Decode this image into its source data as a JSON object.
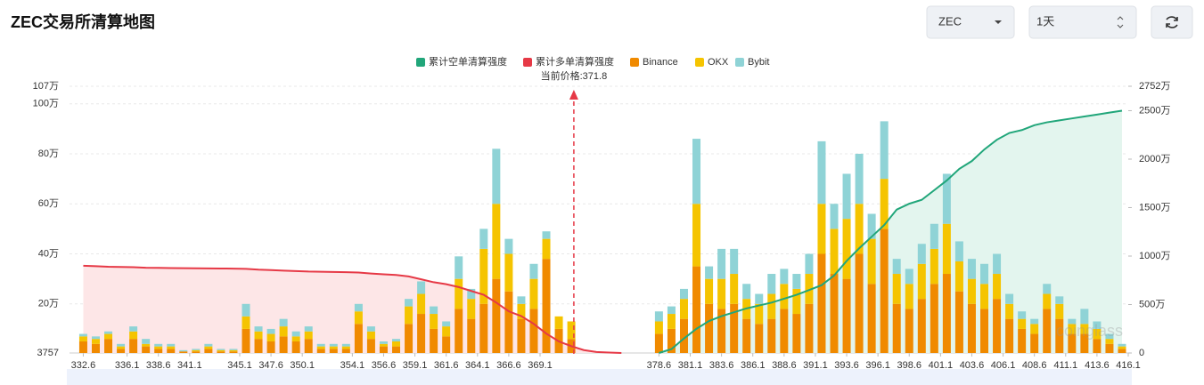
{
  "header": {
    "currency": "ZEC",
    "period": "1天"
  },
  "chart_data": {
    "type": "bar",
    "title": "ZEC交易所清算地图",
    "x": [
      332.6,
      333.6,
      334.6,
      335.6,
      336.6,
      337.6,
      338.6,
      339.6,
      340.6,
      341.6,
      342.6,
      343.6,
      344.6,
      345.6,
      346.6,
      347.6,
      348.6,
      349.6,
      350.6,
      351.6,
      352.6,
      353.6,
      354.6,
      355.6,
      356.6,
      357.6,
      358.6,
      359.6,
      360.6,
      361.6,
      362.6,
      363.6,
      364.6,
      365.6,
      366.6,
      367.6,
      368.6,
      369.6,
      370.6,
      371.6,
      372.6,
      373.6,
      374.6,
      375.6,
      376.6,
      377.6,
      378.6,
      379.6,
      380.6,
      381.6,
      382.6,
      383.6,
      384.6,
      385.6,
      386.6,
      387.6,
      388.6,
      389.6,
      390.6,
      391.6,
      392.6,
      393.6,
      394.6,
      395.6,
      396.6,
      397.6,
      398.6,
      399.6,
      400.6,
      401.6,
      402.6,
      403.6,
      404.6,
      405.6,
      406.6,
      407.6,
      408.6,
      409.6,
      410.6,
      411.6,
      412.6,
      413.6,
      414.6,
      415.6
    ],
    "series": [
      {
        "name": "累计空单清算强度",
        "type": "line",
        "axis": "y2",
        "color": "#21a67a",
        "fill": "#e3f5ee",
        "values": [
          null,
          null,
          null,
          null,
          null,
          null,
          null,
          null,
          null,
          null,
          null,
          null,
          null,
          null,
          null,
          null,
          null,
          null,
          null,
          null,
          null,
          null,
          null,
          null,
          null,
          null,
          null,
          null,
          null,
          null,
          null,
          null,
          null,
          null,
          null,
          null,
          null,
          null,
          null,
          null,
          null,
          null,
          null,
          null,
          null,
          null,
          0,
          40,
          150,
          250,
          330,
          380,
          420,
          460,
          490,
          520,
          560,
          600,
          650,
          700,
          800,
          950,
          1080,
          1200,
          1320,
          1480,
          1540,
          1580,
          1680,
          1780,
          1900,
          1980,
          2100,
          2200,
          2270,
          2300,
          2350,
          2380,
          2400,
          2420,
          2440,
          2460,
          2480,
          2500
        ]
      },
      {
        "name": "累计多单清算强度",
        "type": "line",
        "axis": "y2",
        "color": "#e63946",
        "fill": "#fde6e7",
        "values": [
          900,
          895,
          890,
          888,
          885,
          880,
          878,
          876,
          875,
          874,
          873,
          872,
          870,
          868,
          860,
          855,
          850,
          845,
          840,
          838,
          836,
          834,
          830,
          820,
          812,
          805,
          790,
          760,
          730,
          710,
          680,
          640,
          600,
          520,
          430,
          380,
          300,
          200,
          120,
          70,
          30,
          10,
          5,
          0,
          null,
          null,
          null,
          null,
          null,
          null,
          null,
          null,
          null,
          null,
          null,
          null,
          null,
          null,
          null,
          null,
          null,
          null,
          null,
          null,
          null,
          null,
          null,
          null,
          null,
          null,
          null,
          null,
          null,
          null,
          null,
          null,
          null,
          null,
          null,
          null,
          null,
          null,
          null,
          null
        ]
      },
      {
        "name": "Binance",
        "type": "bar",
        "color": "#f08a00",
        "values": [
          5,
          4,
          6,
          2,
          6,
          3,
          2,
          2,
          1,
          1,
          2,
          1,
          1,
          10,
          6,
          5,
          7,
          5,
          6,
          2,
          2,
          2,
          12,
          6,
          3,
          3,
          12,
          16,
          10,
          7,
          18,
          14,
          20,
          30,
          25,
          14,
          18,
          38,
          10,
          6,
          0,
          0,
          0,
          0,
          0,
          0,
          8,
          10,
          14,
          35,
          20,
          18,
          20,
          14,
          12,
          14,
          18,
          16,
          20,
          40,
          32,
          30,
          40,
          28,
          50,
          20,
          18,
          22,
          28,
          32,
          25,
          20,
          18,
          22,
          14,
          10,
          8,
          18,
          14,
          8,
          8,
          6,
          4,
          2
        ]
      },
      {
        "name": "OKX",
        "type": "bar",
        "color": "#f5c400",
        "values": [
          2,
          2,
          2,
          1,
          3,
          1,
          1,
          1,
          0,
          0.5,
          1,
          0.5,
          0.5,
          5,
          3,
          3,
          4,
          2,
          3,
          1,
          1,
          1,
          5,
          3,
          1,
          2,
          7,
          8,
          6,
          4,
          12,
          8,
          22,
          30,
          15,
          6,
          12,
          8,
          5,
          7,
          0,
          0,
          0,
          0,
          0,
          0,
          5,
          6,
          8,
          25,
          10,
          12,
          12,
          8,
          8,
          10,
          10,
          10,
          12,
          20,
          18,
          24,
          20,
          18,
          20,
          12,
          10,
          14,
          14,
          20,
          12,
          10,
          10,
          10,
          6,
          4,
          4,
          6,
          6,
          4,
          4,
          4,
          2,
          1
        ]
      },
      {
        "name": "Bybit",
        "type": "bar",
        "color": "#8fd3d6",
        "values": [
          1,
          1,
          1,
          1,
          2,
          2,
          1,
          1,
          0.5,
          0.5,
          1,
          0.5,
          0.5,
          5,
          2,
          2,
          3,
          2,
          2,
          1,
          1,
          1,
          3,
          2,
          1,
          1,
          3,
          5,
          3,
          2,
          9,
          4,
          8,
          22,
          6,
          3,
          6,
          3,
          0,
          0,
          0,
          0,
          0,
          0,
          0,
          0,
          4,
          3,
          4,
          26,
          5,
          12,
          10,
          6,
          4,
          8,
          6,
          6,
          8,
          25,
          10,
          18,
          20,
          10,
          23,
          6,
          6,
          8,
          10,
          20,
          8,
          8,
          8,
          8,
          4,
          3,
          2,
          4,
          3,
          2,
          6,
          3,
          2,
          1
        ]
      }
    ],
    "xlim": [
      331.5,
      416.1
    ],
    "xticks": [
      332.6,
      336.1,
      338.6,
      341.1,
      345.1,
      347.6,
      350.1,
      354.1,
      356.6,
      359.1,
      361.6,
      364.1,
      366.6,
      369.1,
      378.6,
      381.1,
      383.6,
      386.1,
      388.6,
      391.1,
      393.6,
      396.1,
      398.6,
      401.1,
      403.6,
      406.1,
      408.6,
      411.1,
      413.6,
      416.1
    ],
    "ylim": [
      0.3757,
      107
    ],
    "yticks": [
      {
        "value": 0.3757,
        "label": "3757"
      },
      {
        "value": 20,
        "label": "20万"
      },
      {
        "value": 40,
        "label": "40万"
      },
      {
        "value": 60,
        "label": "60万"
      },
      {
        "value": 80,
        "label": "80万"
      },
      {
        "value": 100,
        "label": "100万"
      },
      {
        "value": 107,
        "label": "107万"
      }
    ],
    "y2lim": [
      0,
      2752
    ],
    "y2ticks": [
      0,
      {
        "value": 500,
        "label": "500万"
      },
      {
        "value": 1000,
        "label": "1000万"
      },
      {
        "value": 1500,
        "label": "1500万"
      },
      {
        "value": 2000,
        "label": "2000万"
      },
      {
        "value": 2500,
        "label": "2500万"
      },
      {
        "value": 2752,
        "label": "2752万"
      }
    ],
    "grid": true,
    "annotation": {
      "text": "当前价格:371.8",
      "x": 371.8
    },
    "watermark": "coinglass"
  }
}
